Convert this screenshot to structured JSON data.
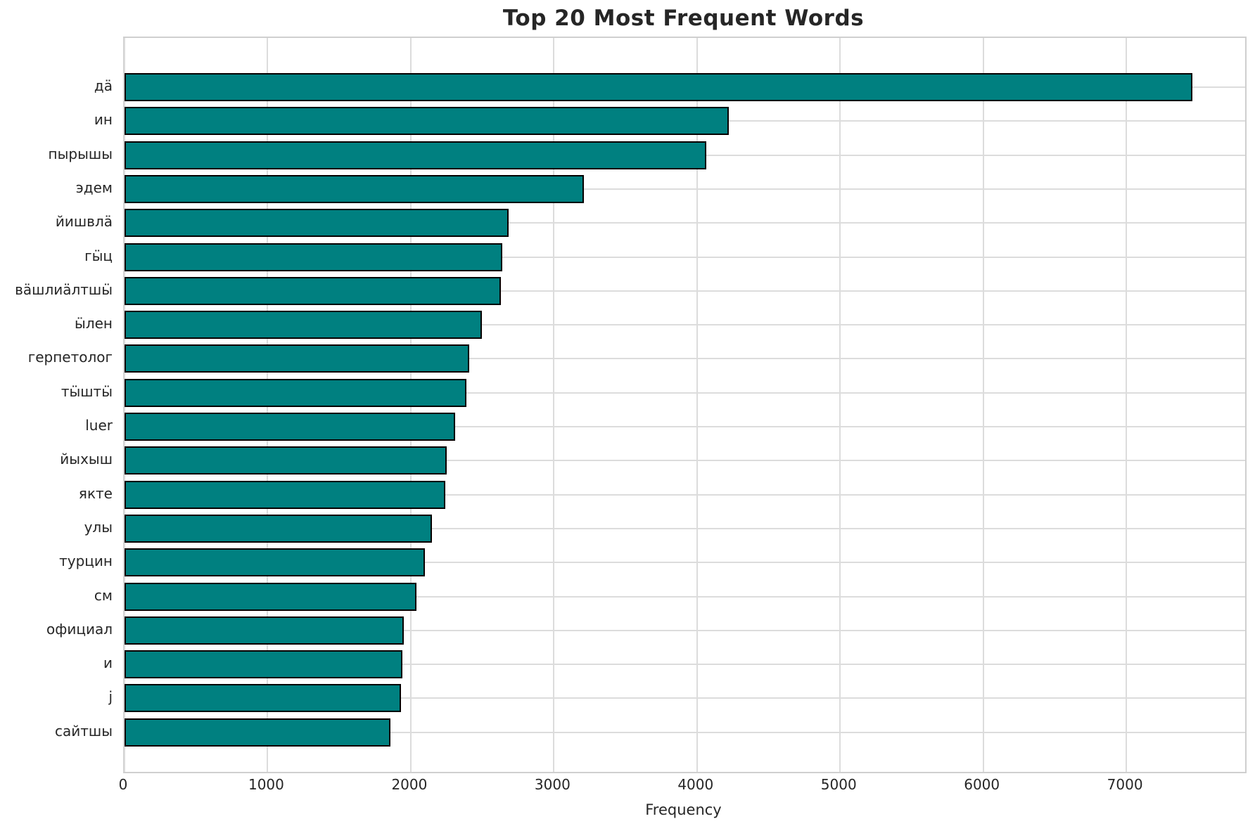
{
  "figure": {
    "background": "#ffffff",
    "bar_color": "#008080",
    "bar_edge_color": "#000000",
    "grid_color": "#dcdcdc",
    "spine_color": "#cfcfcf",
    "text_color": "#262626"
  },
  "chart_data": {
    "type": "bar",
    "orientation": "horizontal",
    "title": "Top 20 Most Frequent Words",
    "xlabel": "Frequency",
    "ylabel": "",
    "grid": true,
    "legend": false,
    "xlim": [
      0,
      7830
    ],
    "xticks": [
      0,
      1000,
      2000,
      3000,
      4000,
      5000,
      6000,
      7000
    ],
    "categories": [
      "дä",
      "ин",
      "пырышы",
      "эдем",
      "йишвлä",
      "гӹц",
      "вäшлиäлтшӹ",
      "ӹлен",
      "герпетолог",
      "тӹштӹ",
      "luer",
      "йыхыш",
      "якте",
      "улы",
      "турцин",
      "см",
      "официал",
      "и",
      "j",
      "сайтшы"
    ],
    "values": [
      7460,
      4220,
      4065,
      3210,
      2685,
      2640,
      2630,
      2495,
      2410,
      2390,
      2310,
      2250,
      2240,
      2150,
      2100,
      2040,
      1950,
      1940,
      1930,
      1860
    ]
  }
}
